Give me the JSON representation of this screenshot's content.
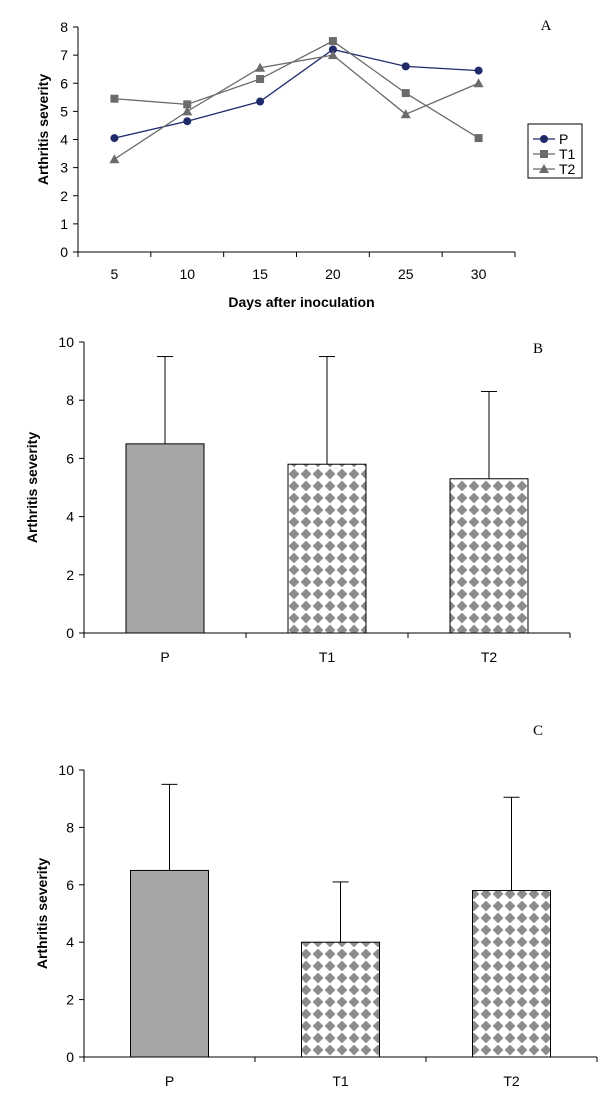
{
  "colors": {
    "P": "#1f2a6b",
    "T1": "#6b6b6b",
    "T2": "#6b6b6b",
    "bar_solid": "#a6a6a6",
    "pattern": "#8c8c8c"
  },
  "chart_data": [
    {
      "panel": "A",
      "type": "line",
      "xlabel": "Days after inoculation",
      "ylabel": "Arthritis severity",
      "x": [
        5,
        10,
        15,
        20,
        25,
        30
      ],
      "ylim": [
        0,
        8
      ],
      "yticks": [
        0,
        1,
        2,
        3,
        4,
        5,
        6,
        7,
        8
      ],
      "grid": false,
      "legend_position": "right",
      "series": [
        {
          "name": "P",
          "marker": "circle",
          "values": [
            4.05,
            4.65,
            5.35,
            7.2,
            6.6,
            6.45
          ]
        },
        {
          "name": "T1",
          "marker": "square",
          "values": [
            5.45,
            5.25,
            6.15,
            7.5,
            5.65,
            4.05
          ]
        },
        {
          "name": "T2",
          "marker": "triangle",
          "values": [
            3.3,
            5.0,
            6.55,
            7.0,
            4.9,
            6.0
          ]
        }
      ]
    },
    {
      "panel": "B",
      "type": "bar",
      "ylabel": "Arthritis severity",
      "categories": [
        "P",
        "T1",
        "T2"
      ],
      "values": [
        6.5,
        5.8,
        5.3
      ],
      "error_upper": [
        9.5,
        9.5,
        8.3
      ],
      "fills": [
        "solid",
        "pattern",
        "pattern"
      ],
      "ylim": [
        0,
        10
      ],
      "yticks": [
        0,
        2,
        4,
        6,
        8,
        10
      ],
      "grid": false
    },
    {
      "panel": "C",
      "type": "bar",
      "ylabel": "Arthritis severity",
      "categories": [
        "P",
        "T1",
        "T2"
      ],
      "values": [
        6.5,
        4.0,
        5.8
      ],
      "error_upper": [
        9.5,
        6.1,
        9.05
      ],
      "fills": [
        "solid",
        "pattern",
        "pattern"
      ],
      "ylim": [
        0,
        10
      ],
      "yticks": [
        0,
        2,
        4,
        6,
        8,
        10
      ],
      "grid": false
    }
  ]
}
